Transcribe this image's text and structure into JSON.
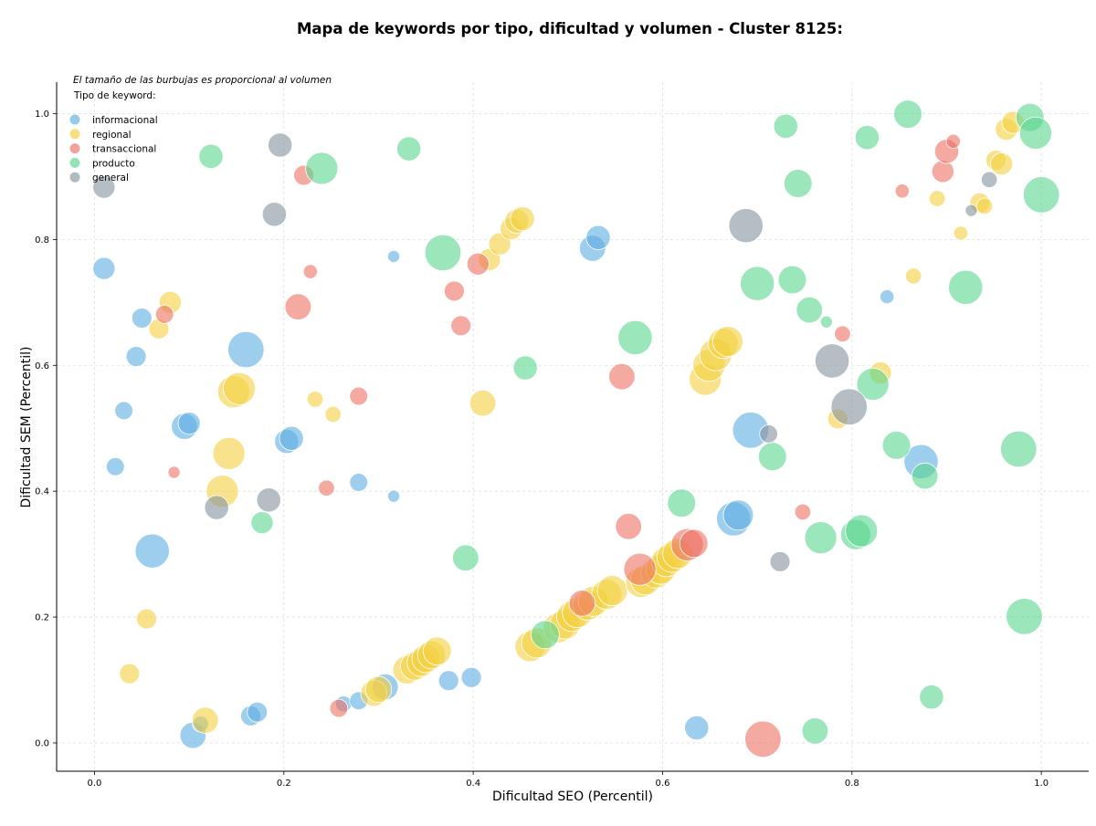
{
  "chart_data": {
    "type": "scatter",
    "title": "Mapa de keywords por tipo, dificultad y volumen - Cluster 8125:",
    "xlabel": "Dificultad SEO (Percentil)",
    "ylabel": "Dificultad SEM (Percentil)",
    "xlim": [
      -0.04,
      1.05
    ],
    "ylim": [
      -0.045,
      1.05
    ],
    "xticks": [
      "0.0",
      "0.2",
      "0.4",
      "0.6",
      "0.8",
      "1.0"
    ],
    "yticks": [
      "0.0",
      "0.2",
      "0.4",
      "0.6",
      "0.8",
      "1.0"
    ],
    "grid": true,
    "legend": {
      "note": "El tamaño de las burbujas es proporcional al volumen",
      "title": "Tipo de keyword:",
      "placement": "top-left"
    },
    "series": [
      {
        "name": "informacional",
        "color": "#5DADE2",
        "points": [
          [
            0.01,
            0.754,
            1.1
          ],
          [
            0.05,
            0.675,
            1.0
          ],
          [
            0.044,
            0.614,
            1.0
          ],
          [
            0.031,
            0.528,
            0.9
          ],
          [
            0.022,
            0.439,
            0.9
          ],
          [
            0.061,
            0.305,
            1.7
          ],
          [
            0.095,
            0.503,
            1.3
          ],
          [
            0.1,
            0.508,
            1.1
          ],
          [
            0.16,
            0.625,
            1.8
          ],
          [
            0.203,
            0.479,
            1.2
          ],
          [
            0.208,
            0.484,
            1.2
          ],
          [
            0.279,
            0.414,
            0.9
          ],
          [
            0.316,
            0.773,
            0.6
          ],
          [
            0.316,
            0.392,
            0.6
          ],
          [
            0.526,
            0.786,
            1.3
          ],
          [
            0.532,
            0.803,
            1.2
          ],
          [
            0.675,
            0.356,
            1.7
          ],
          [
            0.68,
            0.362,
            1.5
          ],
          [
            0.693,
            0.497,
            1.8
          ],
          [
            0.837,
            0.709,
            0.7
          ],
          [
            0.873,
            0.447,
            1.7
          ],
          [
            0.636,
            0.024,
            1.2
          ],
          [
            0.104,
            0.012,
            1.3
          ],
          [
            0.112,
            0.03,
            0.8
          ],
          [
            0.165,
            0.043,
            1.0
          ],
          [
            0.172,
            0.049,
            1.0
          ],
          [
            0.263,
            0.062,
            0.8
          ],
          [
            0.279,
            0.067,
            0.9
          ],
          [
            0.307,
            0.089,
            1.3
          ],
          [
            0.374,
            0.099,
            1.0
          ],
          [
            0.398,
            0.104,
            1.0
          ]
        ]
      },
      {
        "name": "regional",
        "color": "#F4D03F",
        "points": [
          [
            0.08,
            0.7,
            1.1
          ],
          [
            0.068,
            0.658,
            1.0
          ],
          [
            0.147,
            0.558,
            1.6
          ],
          [
            0.153,
            0.563,
            1.6
          ],
          [
            0.142,
            0.46,
            1.6
          ],
          [
            0.135,
            0.4,
            1.6
          ],
          [
            0.233,
            0.546,
            0.8
          ],
          [
            0.252,
            0.522,
            0.8
          ],
          [
            0.055,
            0.197,
            1.0
          ],
          [
            0.037,
            0.11,
            1.0
          ],
          [
            0.117,
            0.036,
            1.3
          ],
          [
            0.41,
            0.54,
            1.3
          ],
          [
            0.417,
            0.768,
            1.1
          ],
          [
            0.428,
            0.793,
            1.1
          ],
          [
            0.44,
            0.817,
            1.1
          ],
          [
            0.446,
            0.829,
            1.2
          ],
          [
            0.452,
            0.833,
            1.2
          ],
          [
            0.645,
            0.578,
            1.6
          ],
          [
            0.649,
            0.6,
            1.6
          ],
          [
            0.656,
            0.617,
            1.6
          ],
          [
            0.664,
            0.635,
            1.5
          ],
          [
            0.669,
            0.638,
            1.5
          ],
          [
            0.785,
            0.515,
            1.0
          ],
          [
            0.83,
            0.588,
            1.1
          ],
          [
            0.865,
            0.742,
            0.8
          ],
          [
            0.89,
            0.865,
            0.8
          ],
          [
            0.915,
            0.81,
            0.7
          ],
          [
            0.935,
            0.858,
            1.0
          ],
          [
            0.94,
            0.853,
            0.8
          ],
          [
            0.952,
            0.926,
            1.0
          ],
          [
            0.958,
            0.92,
            1.1
          ],
          [
            0.963,
            0.975,
            1.1
          ],
          [
            0.97,
            0.986,
            1.1
          ],
          [
            0.295,
            0.079,
            1.3
          ],
          [
            0.3,
            0.085,
            1.3
          ],
          [
            0.33,
            0.116,
            1.4
          ],
          [
            0.338,
            0.122,
            1.4
          ],
          [
            0.345,
            0.128,
            1.4
          ],
          [
            0.35,
            0.134,
            1.4
          ],
          [
            0.356,
            0.14,
            1.4
          ],
          [
            0.362,
            0.146,
            1.4
          ],
          [
            0.46,
            0.153,
            1.5
          ],
          [
            0.467,
            0.159,
            1.5
          ],
          [
            0.49,
            0.183,
            1.5
          ],
          [
            0.497,
            0.189,
            1.5
          ],
          [
            0.504,
            0.201,
            1.5
          ],
          [
            0.51,
            0.207,
            1.5
          ],
          [
            0.521,
            0.219,
            1.5
          ],
          [
            0.527,
            0.225,
            1.5
          ],
          [
            0.541,
            0.236,
            1.5
          ],
          [
            0.547,
            0.242,
            1.5
          ],
          [
            0.577,
            0.255,
            1.5
          ],
          [
            0.582,
            0.259,
            1.5
          ],
          [
            0.593,
            0.27,
            1.5
          ],
          [
            0.598,
            0.276,
            1.5
          ],
          [
            0.604,
            0.288,
            1.5
          ],
          [
            0.61,
            0.295,
            1.5
          ],
          [
            0.616,
            0.301,
            1.5
          ]
        ]
      },
      {
        "name": "transaccional",
        "color": "#EC7063",
        "points": [
          [
            0.221,
            0.902,
            1.0
          ],
          [
            0.228,
            0.749,
            0.7
          ],
          [
            0.215,
            0.693,
            1.3
          ],
          [
            0.074,
            0.681,
            0.9
          ],
          [
            0.084,
            0.43,
            0.6
          ],
          [
            0.245,
            0.405,
            0.8
          ],
          [
            0.279,
            0.551,
            0.9
          ],
          [
            0.38,
            0.718,
            1.0
          ],
          [
            0.387,
            0.663,
            1.0
          ],
          [
            0.405,
            0.761,
            1.1
          ],
          [
            0.557,
            0.582,
            1.3
          ],
          [
            0.564,
            0.344,
            1.3
          ],
          [
            0.576,
            0.276,
            1.6
          ],
          [
            0.626,
            0.315,
            1.6
          ],
          [
            0.633,
            0.317,
            1.4
          ],
          [
            0.706,
            0.006,
            1.8
          ],
          [
            0.748,
            0.367,
            0.8
          ],
          [
            0.79,
            0.65,
            0.8
          ],
          [
            0.853,
            0.877,
            0.7
          ],
          [
            0.896,
            0.908,
            1.1
          ],
          [
            0.9,
            0.94,
            1.2
          ],
          [
            0.907,
            0.956,
            0.7
          ],
          [
            0.258,
            0.055,
            0.9
          ],
          [
            0.515,
            0.222,
            1.3
          ]
        ]
      },
      {
        "name": "producto",
        "color": "#58D68D",
        "points": [
          [
            0.123,
            0.932,
            1.2
          ],
          [
            0.24,
            0.913,
            1.6
          ],
          [
            0.332,
            0.944,
            1.2
          ],
          [
            0.177,
            0.35,
            1.1
          ],
          [
            0.368,
            0.779,
            1.8
          ],
          [
            0.392,
            0.294,
            1.3
          ],
          [
            0.455,
            0.596,
            1.2
          ],
          [
            0.476,
            0.172,
            1.4
          ],
          [
            0.571,
            0.644,
            1.7
          ],
          [
            0.62,
            0.381,
            1.4
          ],
          [
            0.7,
            0.73,
            1.7
          ],
          [
            0.716,
            0.455,
            1.4
          ],
          [
            0.73,
            0.98,
            1.2
          ],
          [
            0.737,
            0.736,
            1.4
          ],
          [
            0.743,
            0.889,
            1.4
          ],
          [
            0.755,
            0.688,
            1.3
          ],
          [
            0.767,
            0.326,
            1.6
          ],
          [
            0.761,
            0.019,
            1.3
          ],
          [
            0.773,
            0.669,
            0.6
          ],
          [
            0.804,
            0.331,
            1.5
          ],
          [
            0.81,
            0.337,
            1.6
          ],
          [
            0.816,
            0.962,
            1.2
          ],
          [
            0.822,
            0.57,
            1.6
          ],
          [
            0.847,
            0.473,
            1.4
          ],
          [
            0.859,
            0.999,
            1.4
          ],
          [
            0.877,
            0.424,
            1.3
          ],
          [
            0.884,
            0.073,
            1.2
          ],
          [
            0.92,
            0.724,
            1.7
          ],
          [
            0.976,
            0.467,
            1.8
          ],
          [
            0.982,
            0.201,
            1.8
          ],
          [
            0.988,
            0.994,
            1.4
          ],
          [
            0.994,
            0.969,
            1.6
          ],
          [
            1.0,
            0.871,
            1.8
          ]
        ]
      },
      {
        "name": "general",
        "color": "#85929E",
        "points": [
          [
            0.01,
            0.883,
            1.1
          ],
          [
            0.196,
            0.95,
            1.2
          ],
          [
            0.19,
            0.84,
            1.2
          ],
          [
            0.184,
            0.386,
            1.2
          ],
          [
            0.129,
            0.374,
            1.2
          ],
          [
            0.688,
            0.822,
            1.7
          ],
          [
            0.712,
            0.491,
            0.9
          ],
          [
            0.724,
            0.288,
            1.0
          ],
          [
            0.779,
            0.607,
            1.7
          ],
          [
            0.797,
            0.534,
            1.8
          ],
          [
            0.926,
            0.846,
            0.6
          ],
          [
            0.945,
            0.895,
            0.8
          ]
        ]
      }
    ]
  }
}
